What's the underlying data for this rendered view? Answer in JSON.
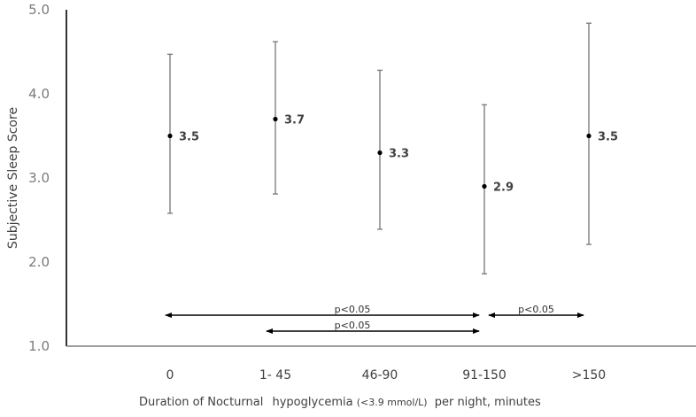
{
  "chart_data": {
    "type": "scatter",
    "subtype": "error-bar",
    "title": "",
    "xlabel": "Duration of Nocturnal hypoglycemia (<3.9 mmol/L) per night, minutes",
    "xlabel_parts": {
      "main": "Duration of Nocturnal",
      "hypo": "hypoglycemia",
      "unit": "(<3.9 mmol/L)",
      "tail": "per night, minutes"
    },
    "ylabel": "Subjective Sleep Score",
    "ylim": [
      1.0,
      5.0
    ],
    "yticks": [
      "1.0",
      "2.0",
      "3.0",
      "4.0",
      "5.0"
    ],
    "grid": false,
    "legend": null,
    "categories": [
      "0",
      "1- 45",
      "46-90",
      "91-150",
      ">150"
    ],
    "series": [
      {
        "name": "Subjective Sleep Score",
        "values": [
          3.5,
          3.7,
          3.3,
          2.9,
          3.5
        ],
        "labels": [
          "3.5",
          "3.7",
          "3.3",
          "2.9",
          "3.5"
        ],
        "upper": [
          4.47,
          4.62,
          4.28,
          3.87,
          4.84
        ],
        "lower": [
          2.58,
          2.81,
          2.39,
          1.86,
          2.21
        ]
      }
    ],
    "annotations": [
      {
        "type": "arrow",
        "from": "0",
        "to": "91-150",
        "text": "p<0.05",
        "y": 1.35
      },
      {
        "type": "arrow",
        "from": "1- 45",
        "to": "91-150",
        "text": "p<0.05",
        "y": 1.2
      },
      {
        "type": "arrow",
        "from": "91-150",
        "to": ">150",
        "text": "p<0.05",
        "y": 1.35
      }
    ],
    "colors": {
      "axis": "#000000",
      "errorbar": "#7f7f7f",
      "point": "#000000",
      "text": "#404040",
      "tick": "#7a7a7a"
    }
  }
}
